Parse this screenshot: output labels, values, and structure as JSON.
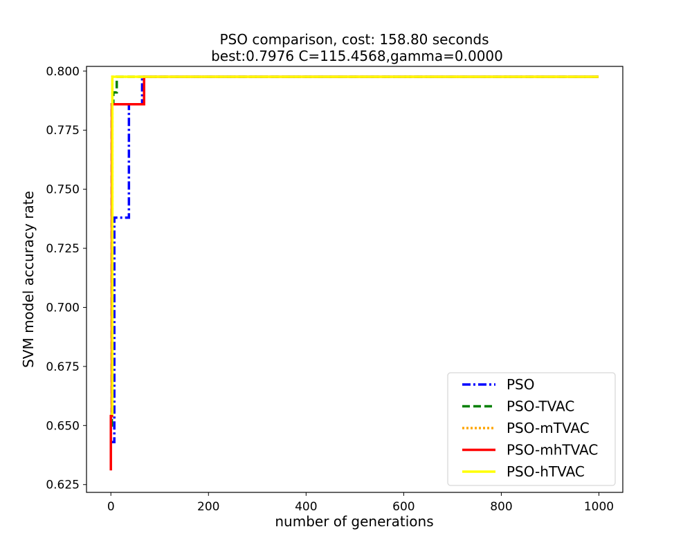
{
  "chart_data": {
    "type": "line",
    "title": "PSO comparison, cost: 158.80 seconds",
    "subtitle": "best:0.7976  C=115.4568,gamma=0.0000",
    "xlabel": "number of generations",
    "ylabel": "SVM model accuracy rate",
    "xlim": [
      -49.95,
      1048.95
    ],
    "ylim": [
      0.6217,
      0.802
    ],
    "xticks": [
      0,
      200,
      400,
      600,
      800,
      1000
    ],
    "xtick_labels": [
      "0",
      "200",
      "400",
      "600",
      "800",
      "1000"
    ],
    "yticks": [
      0.625,
      0.65,
      0.675,
      0.7,
      0.725,
      0.75,
      0.775,
      0.8
    ],
    "ytick_labels": [
      "0.625",
      "0.650",
      "0.675",
      "0.700",
      "0.725",
      "0.750",
      "0.775",
      "0.800"
    ],
    "grid": false,
    "legend_position": "lower-right",
    "series": [
      {
        "name": "PSO",
        "color": "#0000ff",
        "dash": "dashdot",
        "x": [
          0,
          7,
          7,
          10,
          10,
          37,
          37,
          64,
          64,
          999
        ],
        "y": [
          0.643,
          0.643,
          0.738,
          0.738,
          0.738,
          0.738,
          0.786,
          0.786,
          0.7976,
          0.7976
        ]
      },
      {
        "name": "PSO-TVAC",
        "color": "#008000",
        "dash": "dashed",
        "x": [
          0,
          2,
          2,
          5,
          5,
          12,
          12,
          999
        ],
        "y": [
          0.65,
          0.65,
          0.786,
          0.786,
          0.791,
          0.791,
          0.7976,
          0.7976
        ]
      },
      {
        "name": "PSO-mTVAC",
        "color": "#ffa500",
        "dash": "dotted",
        "x": [
          0,
          3,
          3,
          999
        ],
        "y": [
          0.654,
          0.654,
          0.7976,
          0.7976
        ]
      },
      {
        "name": "PSO-mhTVAC",
        "color": "#ff0000",
        "dash": "solid",
        "x": [
          0,
          0,
          2,
          2,
          68,
          68,
          999
        ],
        "y": [
          0.631,
          0.654,
          0.654,
          0.786,
          0.786,
          0.7976,
          0.7976
        ]
      },
      {
        "name": "PSO-hTVAC",
        "color": "#ffff00",
        "dash": "solid",
        "x": [
          0,
          3,
          3,
          999
        ],
        "y": [
          0.655,
          0.655,
          0.7976,
          0.7976
        ]
      }
    ]
  }
}
